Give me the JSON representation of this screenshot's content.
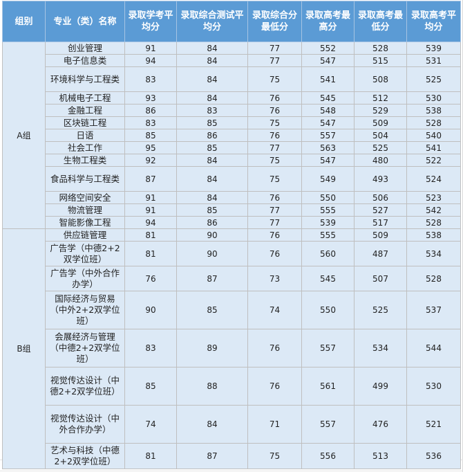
{
  "headers": {
    "group": "组别",
    "major": "专业（类）名称",
    "xk_avg": "录取学考平均分",
    "zh_avg": "录取综合测试平均分",
    "zh_min": "录取综合分最低分",
    "gk_max": "录取高考最高分",
    "gk_min": "录取高考最低分",
    "gk_avg": "录取高考平均分"
  },
  "groups": [
    {
      "name": "A组",
      "rows": [
        {
          "major": "创业管理",
          "xk_avg": "91",
          "zh_avg": "84",
          "zh_min": "77",
          "gk_max": "552",
          "gk_min": "528",
          "gk_avg": "539"
        },
        {
          "major": "电子信息类",
          "xk_avg": "94",
          "zh_avg": "84",
          "zh_min": "77",
          "gk_max": "547",
          "gk_min": "515",
          "gk_avg": "531"
        },
        {
          "major": "环境科学与工程类",
          "xk_avg": "83",
          "zh_avg": "84",
          "zh_min": "75",
          "gk_max": "541",
          "gk_min": "508",
          "gk_avg": "525"
        },
        {
          "major": "机械电子工程",
          "xk_avg": "93",
          "zh_avg": "84",
          "zh_min": "76",
          "gk_max": "545",
          "gk_min": "512",
          "gk_avg": "530"
        },
        {
          "major": "金融工程",
          "xk_avg": "86",
          "zh_avg": "83",
          "zh_min": "76",
          "gk_max": "548",
          "gk_min": "529",
          "gk_avg": "538"
        },
        {
          "major": "区块链工程",
          "xk_avg": "83",
          "zh_avg": "85",
          "zh_min": "75",
          "gk_max": "547",
          "gk_min": "509",
          "gk_avg": "528"
        },
        {
          "major": "日语",
          "xk_avg": "85",
          "zh_avg": "86",
          "zh_min": "76",
          "gk_max": "557",
          "gk_min": "504",
          "gk_avg": "540"
        },
        {
          "major": "社会工作",
          "xk_avg": "95",
          "zh_avg": "85",
          "zh_min": "77",
          "gk_max": "563",
          "gk_min": "525",
          "gk_avg": "541"
        },
        {
          "major": "生物工程类",
          "xk_avg": "92",
          "zh_avg": "84",
          "zh_min": "75",
          "gk_max": "547",
          "gk_min": "480",
          "gk_avg": "522"
        },
        {
          "major": "食品科学与工程类",
          "xk_avg": "87",
          "zh_avg": "84",
          "zh_min": "75",
          "gk_max": "549",
          "gk_min": "493",
          "gk_avg": "524"
        },
        {
          "major": "网络空间安全",
          "xk_avg": "91",
          "zh_avg": "84",
          "zh_min": "76",
          "gk_max": "550",
          "gk_min": "506",
          "gk_avg": "523"
        },
        {
          "major": "物流管理",
          "xk_avg": "91",
          "zh_avg": "85",
          "zh_min": "77",
          "gk_max": "555",
          "gk_min": "527",
          "gk_avg": "542"
        },
        {
          "major": "智能影像工程",
          "xk_avg": "94",
          "zh_avg": "86",
          "zh_min": "77",
          "gk_max": "539",
          "gk_min": "517",
          "gk_avg": "528"
        }
      ]
    },
    {
      "name": "B组",
      "rows": [
        {
          "major": "供应链管理",
          "xk_avg": "81",
          "zh_avg": "90",
          "zh_min": "76",
          "gk_max": "555",
          "gk_min": "509",
          "gk_avg": "538"
        },
        {
          "major": "广告学（中德2+2双学位班）",
          "xk_avg": "81",
          "zh_avg": "90",
          "zh_min": "76",
          "gk_max": "560",
          "gk_min": "487",
          "gk_avg": "534"
        },
        {
          "major": "广告学（中外合作办学）",
          "xk_avg": "76",
          "zh_avg": "87",
          "zh_min": "73",
          "gk_max": "545",
          "gk_min": "507",
          "gk_avg": "528"
        },
        {
          "major": "国际经济与贸易（中外2+2双学位班）",
          "xk_avg": "90",
          "zh_avg": "85",
          "zh_min": "74",
          "gk_max": "550",
          "gk_min": "525",
          "gk_avg": "537"
        },
        {
          "major": "会展经济与管理（中德2+2双学位班）",
          "xk_avg": "83",
          "zh_avg": "89",
          "zh_min": "76",
          "gk_max": "557",
          "gk_min": "534",
          "gk_avg": "544"
        },
        {
          "major": "视觉传达设计（中德2+2双学位班）",
          "xk_avg": "85",
          "zh_avg": "88",
          "zh_min": "76",
          "gk_max": "561",
          "gk_min": "499",
          "gk_avg": "530"
        },
        {
          "major": "视觉传达设计（中外合作办学）",
          "xk_avg": "74",
          "zh_avg": "84",
          "zh_min": "71",
          "gk_max": "557",
          "gk_min": "476",
          "gk_avg": "521"
        },
        {
          "major": "艺术与科技（中德2+2双学位班）",
          "xk_avg": "81",
          "zh_avg": "87",
          "zh_min": "75",
          "gk_max": "556",
          "gk_min": "513",
          "gk_avg": "536"
        }
      ]
    }
  ]
}
